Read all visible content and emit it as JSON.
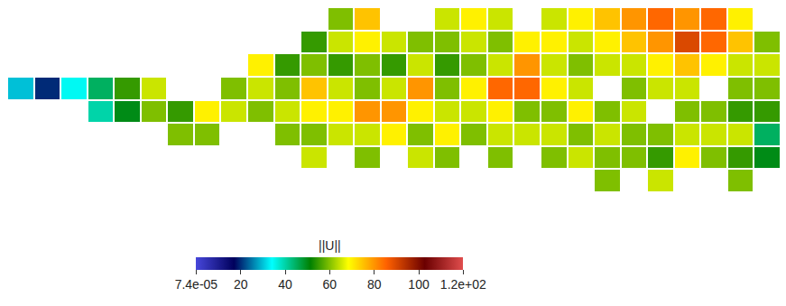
{
  "chart_data": {
    "type": "heatmap",
    "tick_labels": false,
    "grid": false,
    "cells": [
      [
        null,
        null,
        null,
        null,
        null,
        null,
        null,
        null,
        null,
        null,
        null,
        null,
        60,
        75,
        null,
        null,
        65,
        70,
        65,
        null,
        65,
        70,
        75,
        80,
        85,
        80,
        85,
        70,
        null
      ],
      [
        null,
        null,
        null,
        null,
        null,
        null,
        null,
        null,
        null,
        null,
        null,
        55,
        65,
        70,
        65,
        60,
        60,
        65,
        60,
        70,
        70,
        65,
        70,
        75,
        80,
        90,
        85,
        75,
        60
      ],
      [
        null,
        null,
        null,
        null,
        null,
        null,
        null,
        null,
        null,
        70,
        55,
        60,
        55,
        60,
        55,
        65,
        55,
        60,
        65,
        80,
        65,
        60,
        65,
        65,
        70,
        75,
        70,
        65,
        65
      ],
      [
        30,
        20,
        35,
        45,
        55,
        65,
        null,
        null,
        60,
        65,
        60,
        75,
        65,
        60,
        65,
        80,
        60,
        70,
        85,
        85,
        70,
        65,
        null,
        60,
        65,
        65,
        null,
        60,
        60
      ],
      [
        null,
        null,
        null,
        40,
        50,
        60,
        55,
        70,
        65,
        60,
        65,
        70,
        70,
        80,
        80,
        70,
        65,
        65,
        70,
        60,
        60,
        70,
        60,
        65,
        null,
        60,
        60,
        55,
        55
      ],
      [
        null,
        null,
        null,
        null,
        null,
        null,
        60,
        60,
        null,
        null,
        60,
        60,
        65,
        65,
        70,
        60,
        70,
        60,
        65,
        65,
        65,
        60,
        65,
        60,
        60,
        65,
        65,
        65,
        45
      ],
      [
        null,
        null,
        null,
        null,
        null,
        null,
        null,
        null,
        null,
        null,
        null,
        65,
        null,
        60,
        null,
        65,
        60,
        null,
        60,
        null,
        60,
        65,
        60,
        60,
        55,
        70,
        60,
        55,
        50
      ],
      [
        null,
        null,
        null,
        null,
        null,
        null,
        null,
        null,
        null,
        null,
        null,
        null,
        null,
        null,
        null,
        null,
        null,
        null,
        null,
        null,
        null,
        null,
        60,
        null,
        65,
        null,
        null,
        60,
        null
      ]
    ],
    "colorbar": {
      "title": "||U||",
      "range": [
        7.4e-05,
        120
      ],
      "ticks": [
        {
          "value": 7.4e-05,
          "label": "7.4e-05"
        },
        20,
        40,
        60,
        80,
        100,
        {
          "value": 120,
          "label": "1.2e+02"
        }
      ]
    }
  }
}
